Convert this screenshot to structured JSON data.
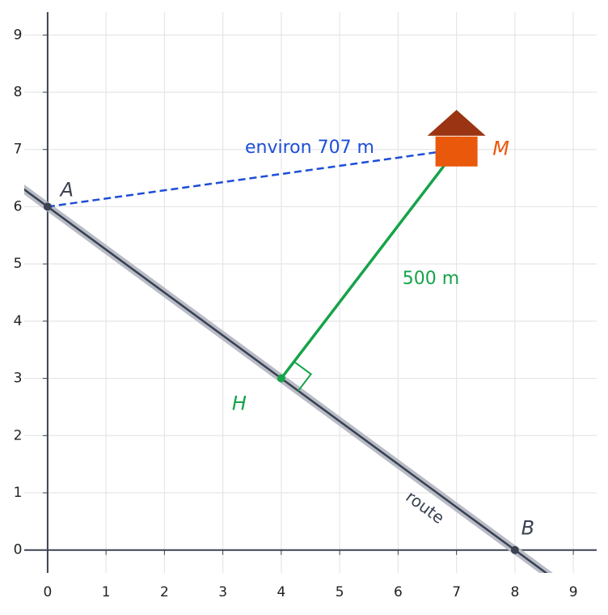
{
  "chart_data": {
    "type": "geometry",
    "xlim": [
      -0.4,
      9.4
    ],
    "ylim": [
      -0.4,
      9.4
    ],
    "xticks": [
      0,
      1,
      2,
      3,
      4,
      5,
      6,
      7,
      8,
      9
    ],
    "yticks": [
      0,
      1,
      2,
      3,
      4,
      5,
      6,
      7,
      8,
      9
    ],
    "grid": true,
    "points": [
      {
        "label": "A",
        "x": 0,
        "y": 6,
        "color": "#3b4252"
      },
      {
        "label": "B",
        "x": 8,
        "y": 0,
        "color": "#3b4252"
      },
      {
        "label": "H",
        "x": 4,
        "y": 3,
        "color": "#16a34a"
      },
      {
        "label": "M",
        "x": 7,
        "y": 7,
        "color": "#ea580c"
      }
    ],
    "route": {
      "label": "route",
      "x": [
        0,
        8
      ],
      "y": [
        6,
        0
      ],
      "color": "#374151"
    },
    "distance": {
      "label": "environ 707 m",
      "x": [
        0,
        7
      ],
      "y": [
        6,
        7
      ],
      "color": "#1d4ed8"
    },
    "perpendicular": {
      "label": "500 m",
      "x": [
        4,
        7
      ],
      "y": [
        3,
        7
      ],
      "color": "#16a34a"
    }
  }
}
